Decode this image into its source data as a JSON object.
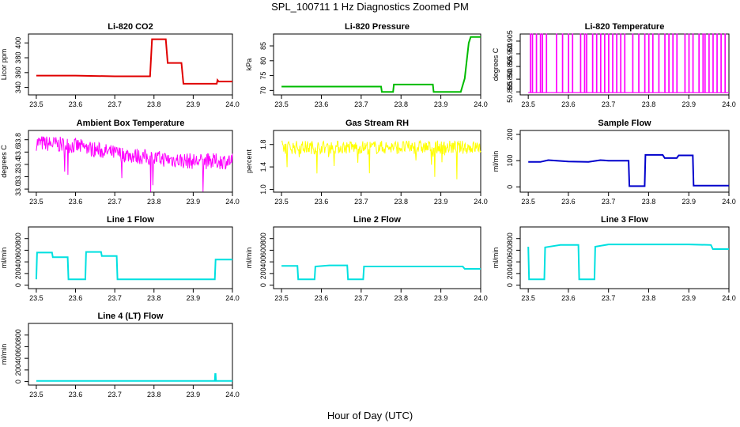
{
  "figure": {
    "title": "SPL_100711  1 Hz Diagnostics Zoomed PM",
    "xlabel": "Hour of Day (UTC)"
  },
  "chart_data": [
    {
      "type": "line",
      "title": "Li-820 CO2",
      "ylabel": "Licor ppm",
      "color": "#e00000",
      "x_ticks": [
        "23.5",
        "23.6",
        "23.7",
        "23.8",
        "23.9",
        "24.0"
      ],
      "xlim": [
        23.48,
        24.0
      ],
      "y_ticks": [
        "340",
        "360",
        "380",
        "400"
      ],
      "y_tick_values": [
        340,
        360,
        380,
        400
      ],
      "ylim": [
        330,
        412
      ],
      "series": [
        {
          "x": [
            23.5,
            23.6,
            23.7,
            23.79,
            23.795,
            23.83,
            23.835,
            23.87,
            23.875,
            23.96,
            23.962,
            23.965,
            24.0
          ],
          "y": [
            356,
            356,
            355,
            355,
            405,
            405,
            373,
            373,
            345,
            345,
            350,
            348,
            348
          ]
        }
      ]
    },
    {
      "type": "line",
      "title": "Li-820 Pressure",
      "ylabel": "kPa",
      "color": "#00bb00",
      "x_ticks": [
        "23.5",
        "23.6",
        "23.7",
        "23.8",
        "23.9",
        "24.0"
      ],
      "xlim": [
        23.48,
        24.0
      ],
      "y_ticks": [
        "70",
        "75",
        "80",
        "85"
      ],
      "y_tick_values": [
        70,
        75,
        80,
        85
      ],
      "ylim": [
        68.5,
        89
      ],
      "series": [
        {
          "x": [
            23.5,
            23.6,
            23.75,
            23.752,
            23.78,
            23.782,
            23.88,
            23.882,
            23.95,
            23.96,
            23.97,
            23.975,
            24.0
          ],
          "y": [
            71.3,
            71.3,
            71.3,
            69.5,
            69.5,
            72,
            72,
            69.5,
            69.5,
            74,
            86,
            88,
            88
          ]
        }
      ]
    },
    {
      "type": "line",
      "title": "Li-820 Temperature",
      "ylabel": "degrees C",
      "color": "#ff00ff",
      "x_ticks": [
        "23.5",
        "23.6",
        "23.7",
        "23.8",
        "23.9",
        "24.0"
      ],
      "xlim": [
        23.48,
        24.0
      ],
      "y_ticks": [
        "50.885",
        "50.890",
        "50.895",
        "50.900",
        "50.905"
      ],
      "y_tick_values": [
        50.885,
        50.89,
        50.895,
        50.9,
        50.905
      ],
      "ylim": [
        50.8838,
        50.9078
      ],
      "series": [
        {
          "low": 50.8847,
          "high": 50.9078,
          "x": [
            23.505,
            23.51,
            23.52,
            23.53,
            23.535,
            23.545,
            23.57,
            23.585,
            23.6,
            23.61,
            23.63,
            23.64,
            23.645,
            23.66,
            23.67,
            23.68,
            23.69,
            23.7,
            23.71,
            23.72,
            23.73,
            23.74,
            23.76,
            23.775,
            23.79,
            23.8,
            23.81,
            23.825,
            23.84,
            23.85,
            23.86,
            23.87,
            23.89,
            23.9,
            23.91,
            23.925,
            23.935,
            23.94,
            23.95,
            23.96,
            23.97,
            23.98,
            23.99
          ]
        }
      ]
    },
    {
      "type": "line",
      "title": "Ambient Box Temperature",
      "ylabel": "degrees C",
      "color": "#ff00ff",
      "x_ticks": [
        "23.5",
        "23.6",
        "23.7",
        "23.8",
        "23.9",
        "24.0"
      ],
      "xlim": [
        23.48,
        24.0
      ],
      "y_ticks": [
        "33.0",
        "33.2",
        "33.4",
        "33.6",
        "33.8"
      ],
      "y_tick_values": [
        33.0,
        33.2,
        33.4,
        33.6,
        33.8
      ],
      "ylim": [
        32.95,
        33.95
      ],
      "series": [
        {
          "x": [
            23.5,
            23.6,
            23.7,
            23.8,
            23.9,
            24.0
          ],
          "y": [
            33.75,
            33.7,
            33.58,
            33.5,
            33.45,
            33.45
          ],
          "noise": 0.13
        }
      ]
    },
    {
      "type": "line",
      "title": "Gas Stream RH",
      "ylabel": "percent",
      "color": "#ffff00",
      "x_ticks": [
        "23.5",
        "23.6",
        "23.7",
        "23.8",
        "23.9",
        "24.0"
      ],
      "xlim": [
        23.48,
        24.0
      ],
      "y_ticks": [
        "1.0",
        "1.4",
        "1.8"
      ],
      "y_tick_values": [
        1.0,
        1.4,
        1.8
      ],
      "ylim": [
        0.95,
        2.05
      ],
      "series": [
        {
          "x": [
            23.5,
            24.0
          ],
          "y": [
            1.75,
            1.75
          ],
          "noise": 0.12
        }
      ]
    },
    {
      "type": "line",
      "title": "Sample Flow",
      "ylabel": "ml/min",
      "color": "#0000cc",
      "x_ticks": [
        "23.5",
        "23.6",
        "23.7",
        "23.8",
        "23.9",
        "24.0"
      ],
      "xlim": [
        23.48,
        24.0
      ],
      "y_ticks": [
        "0",
        "100",
        "200"
      ],
      "y_tick_values": [
        0,
        100,
        200
      ],
      "ylim": [
        -20,
        215
      ],
      "series": [
        {
          "x": [
            23.5,
            23.53,
            23.55,
            23.6,
            23.65,
            23.68,
            23.7,
            23.75,
            23.752,
            23.79,
            23.792,
            23.835,
            23.84,
            23.87,
            23.875,
            23.91,
            23.912,
            24.0
          ],
          "y": [
            95,
            95,
            102,
            97,
            95,
            102,
            100,
            100,
            3,
            3,
            122,
            122,
            110,
            110,
            120,
            120,
            5,
            5
          ]
        }
      ]
    },
    {
      "type": "line",
      "title": "Line 1 Flow",
      "ylabel": "ml/min",
      "color": "#00e0e0",
      "x_ticks": [
        "23.5",
        "23.6",
        "23.7",
        "23.8",
        "23.9",
        "24.0"
      ],
      "xlim": [
        23.48,
        24.0
      ],
      "y_ticks": [
        "0",
        "200",
        "400",
        "600",
        "800"
      ],
      "y_tick_values": [
        0,
        200,
        400,
        600,
        800
      ],
      "ylim": [
        -60,
        1000
      ],
      "series": [
        {
          "x": [
            23.5,
            23.502,
            23.54,
            23.542,
            23.58,
            23.582,
            23.625,
            23.627,
            23.665,
            23.667,
            23.705,
            23.707,
            23.955,
            23.957,
            24.0
          ],
          "y": [
            100,
            560,
            560,
            480,
            480,
            100,
            100,
            570,
            570,
            500,
            500,
            100,
            100,
            440,
            440
          ]
        }
      ]
    },
    {
      "type": "line",
      "title": "Line 2 Flow",
      "ylabel": "ml/min",
      "color": "#00e0e0",
      "x_ticks": [
        "23.5",
        "23.6",
        "23.7",
        "23.8",
        "23.9",
        "24.0"
      ],
      "xlim": [
        23.48,
        24.0
      ],
      "y_ticks": [
        "0",
        "200",
        "400",
        "600",
        "800"
      ],
      "y_tick_values": [
        0,
        200,
        400,
        600,
        800
      ],
      "ylim": [
        -60,
        1000
      ],
      "series": [
        {
          "x": [
            23.5,
            23.54,
            23.542,
            23.583,
            23.585,
            23.62,
            23.665,
            23.667,
            23.705,
            23.707,
            23.955,
            23.96,
            24.0
          ],
          "y": [
            330,
            330,
            100,
            100,
            320,
            340,
            340,
            100,
            100,
            320,
            320,
            280,
            280
          ]
        }
      ]
    },
    {
      "type": "line",
      "title": "Line 3 Flow",
      "ylabel": "ml/min",
      "color": "#00e0e0",
      "x_ticks": [
        "23.5",
        "23.6",
        "23.7",
        "23.8",
        "23.9",
        "24.0"
      ],
      "xlim": [
        23.48,
        24.0
      ],
      "y_ticks": [
        "0",
        "200",
        "400",
        "600",
        "800"
      ],
      "y_tick_values": [
        0,
        200,
        400,
        600,
        800
      ],
      "ylim": [
        -60,
        1000
      ],
      "series": [
        {
          "x": [
            23.5,
            23.502,
            23.505,
            23.54,
            23.542,
            23.58,
            23.625,
            23.627,
            23.665,
            23.667,
            23.7,
            23.8,
            23.9,
            23.955,
            23.96,
            24.0
          ],
          "y": [
            660,
            100,
            100,
            100,
            650,
            690,
            690,
            100,
            100,
            660,
            700,
            700,
            700,
            690,
            620,
            620
          ]
        }
      ]
    },
    {
      "type": "line",
      "title": "Line 4 (LT) Flow",
      "ylabel": "ml/min",
      "color": "#00e0e0",
      "x_ticks": [
        "23.5",
        "23.6",
        "23.7",
        "23.8",
        "23.9",
        "24.0"
      ],
      "xlim": [
        23.48,
        24.0
      ],
      "y_ticks": [
        "0",
        "200",
        "400",
        "600",
        "800"
      ],
      "y_tick_values": [
        0,
        200,
        400,
        600,
        800
      ],
      "ylim": [
        -60,
        1000
      ],
      "series": [
        {
          "x": [
            23.5,
            23.955,
            23.956,
            23.957,
            23.958,
            24.0
          ],
          "y": [
            10,
            10,
            130,
            130,
            10,
            10
          ]
        }
      ]
    }
  ]
}
